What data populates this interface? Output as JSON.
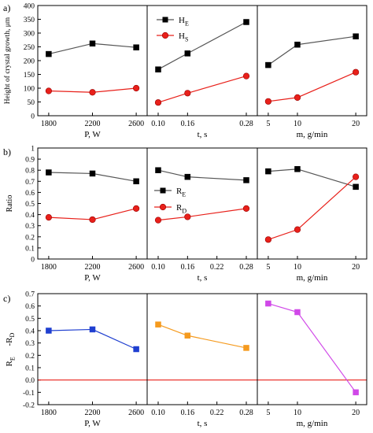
{
  "figure": {
    "panel_labels": [
      "a)",
      "b)",
      "c)"
    ]
  },
  "chart_data": [
    {
      "type": "line",
      "panel": "a)",
      "ylabel": "Height of crystal growth, μm",
      "ylim": [
        0,
        400
      ],
      "yticks": [
        0,
        50,
        100,
        150,
        200,
        250,
        300,
        350,
        400
      ],
      "legend": {
        "location": "upper-left of middle subplot",
        "entries": [
          {
            "name": "H",
            "subscript": "E"
          },
          {
            "name": "H",
            "subscript": "S"
          }
        ]
      },
      "subplots": [
        {
          "xlabel": "P, W",
          "x": [
            1800,
            2200,
            2600
          ],
          "xticks": [
            "1800",
            "2200",
            "2600"
          ],
          "series": [
            {
              "name": "H_E",
              "values": [
                224,
                262,
                248
              ]
            },
            {
              "name": "H_S",
              "values": [
                90,
                85,
                100
              ]
            }
          ]
        },
        {
          "xlabel": "t, s",
          "x": [
            0.1,
            0.16,
            0.28
          ],
          "xticks": [
            "0.10",
            "0.16",
            "0.28"
          ],
          "series": [
            {
              "name": "H_E",
              "values": [
                168,
                226,
                340
              ]
            },
            {
              "name": "H_S",
              "values": [
                48,
                82,
                144
              ]
            }
          ]
        },
        {
          "xlabel": "m, g/min",
          "x": [
            5,
            10,
            20
          ],
          "xticks": [
            "5",
            "10",
            "20"
          ],
          "series": [
            {
              "name": "H_E",
              "values": [
                184,
                258,
                288
              ]
            },
            {
              "name": "H_S",
              "values": [
                52,
                66,
                158
              ]
            }
          ]
        }
      ]
    },
    {
      "type": "line",
      "panel": "b)",
      "ylabel": "Ratio",
      "ylim": [
        0,
        1.0
      ],
      "yticks": [
        "0",
        "0.1",
        "0.2",
        "0.3",
        "0.4",
        "0.5",
        "0.6",
        "0.7",
        "0.8",
        "0.9",
        "1"
      ],
      "legend": {
        "location": "middle subplot",
        "entries": [
          {
            "name": "R",
            "subscript": "E"
          },
          {
            "name": "R",
            "subscript": "D"
          }
        ]
      },
      "subplots": [
        {
          "xlabel": "P, W",
          "x": [
            1800,
            2200,
            2600
          ],
          "xticks": [
            "1800",
            "2200",
            "2600"
          ],
          "series": [
            {
              "name": "R_E",
              "values": [
                0.78,
                0.77,
                0.7
              ]
            },
            {
              "name": "R_D",
              "values": [
                0.375,
                0.355,
                0.455
              ]
            }
          ]
        },
        {
          "xlabel": "t, s",
          "x": [
            0.1,
            0.16,
            0.28
          ],
          "xticks": [
            "0.10",
            "0.16",
            "0.22",
            "0.28"
          ],
          "series": [
            {
              "name": "R_E",
              "values": [
                0.8,
                0.74,
                0.71
              ]
            },
            {
              "name": "R_D",
              "values": [
                0.35,
                0.38,
                0.455
              ]
            }
          ]
        },
        {
          "xlabel": "m, g/min",
          "x": [
            5,
            10,
            20
          ],
          "xticks": [
            "5",
            "10",
            "20"
          ],
          "series": [
            {
              "name": "R_E",
              "values": [
                0.79,
                0.81,
                0.65
              ]
            },
            {
              "name": "R_D",
              "values": [
                0.175,
                0.265,
                0.74
              ]
            }
          ]
        }
      ]
    },
    {
      "type": "line",
      "panel": "c)",
      "ylabel": "R_E-R_D",
      "ylim": [
        -0.2,
        0.7
      ],
      "yticks": [
        "-0.2",
        "-0.1",
        "0.0",
        "0.1",
        "0.2",
        "0.3",
        "0.4",
        "0.5",
        "0.6",
        "0.7"
      ],
      "reference_line": {
        "y": 0,
        "color": "#e8201a"
      },
      "subplots": [
        {
          "xlabel": "P, W",
          "x": [
            1800,
            2200,
            2600
          ],
          "xticks": [
            "1800",
            "2200",
            "2600"
          ],
          "color": "#1f3fd0",
          "series": [
            {
              "name": "",
              "values": [
                0.4,
                0.41,
                0.25
              ]
            }
          ]
        },
        {
          "xlabel": "t, s",
          "x": [
            0.1,
            0.16,
            0.28
          ],
          "xticks": [
            "0.10",
            "0.16",
            "0.22",
            "0.28"
          ],
          "color": "#f59a1e",
          "series": [
            {
              "name": "",
              "values": [
                0.45,
                0.36,
                0.26
              ]
            }
          ]
        },
        {
          "xlabel": "m, g/min",
          "x": [
            5,
            10,
            20
          ],
          "xticks": [
            "5",
            "10",
            "20"
          ],
          "color": "#d048e8",
          "series": [
            {
              "name": "",
              "values": [
                0.62,
                0.55,
                -0.1
              ]
            }
          ]
        }
      ]
    }
  ],
  "colors": {
    "series_1": "#000000",
    "series_2": "#e8201a",
    "reference_line": "#e8201a"
  }
}
